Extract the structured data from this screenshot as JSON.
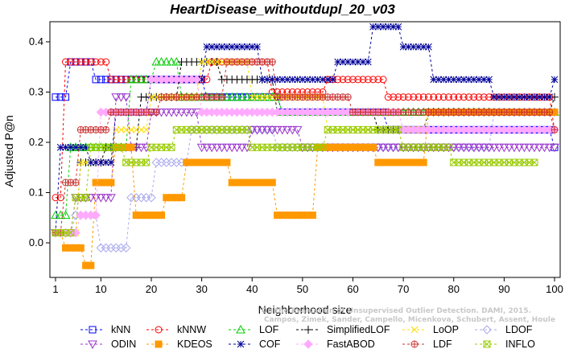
{
  "chart_data": {
    "type": "line",
    "title": "HeartDisease_withoutdupl_20_v03",
    "xlabel": "Neighborhood size",
    "ylabel": "Adjusted P@n",
    "xlim": [
      1,
      100
    ],
    "ylim": [
      -0.05,
      0.45
    ],
    "xticks": [
      1,
      10,
      20,
      30,
      40,
      50,
      60,
      70,
      80,
      90,
      100
    ],
    "yticks": [
      0.0,
      0.1,
      0.2,
      0.3,
      0.4
    ],
    "ytick_labels": [
      "0.0",
      "0.1",
      "0.2",
      "0.3",
      "0.4"
    ],
    "grid": false,
    "legend_position": "bottom",
    "watermark": [
      "Campos, Zimek, Sander, Campello, Micenkova, Schubert, Assent, Houle",
      "On the Evaluation of Unsupervised Outlier Detection. DAMI, 2015."
    ],
    "series": [
      {
        "name": "kNN",
        "color": "#0000ff",
        "marker": "square",
        "segments": [
          [
            1,
            0.29
          ],
          [
            4,
            0.36
          ],
          [
            9,
            0.325
          ],
          [
            22,
            0.325
          ],
          [
            31,
            0.29
          ],
          [
            46,
            0.26
          ],
          [
            67,
            0.225
          ],
          [
            100,
            0.19
          ]
        ]
      },
      {
        "name": "kNNW",
        "color": "#ff0000",
        "marker": "circle",
        "segments": [
          [
            1,
            0.09
          ],
          [
            3,
            0.36
          ],
          [
            12,
            0.325
          ],
          [
            32,
            0.36
          ],
          [
            44,
            0.3
          ],
          [
            55,
            0.325
          ],
          [
            67,
            0.29
          ],
          [
            100,
            0.225
          ]
        ]
      },
      {
        "name": "LOF",
        "color": "#00cc00",
        "marker": "triangle-up",
        "segments": [
          [
            1,
            0.055
          ],
          [
            4,
            0.19
          ],
          [
            16,
            0.325
          ],
          [
            21,
            0.36
          ],
          [
            26,
            0.29
          ],
          [
            46,
            0.26
          ],
          [
            100,
            0.26
          ]
        ]
      },
      {
        "name": "SimplifiedLOF",
        "color": "#000000",
        "marker": "plus",
        "segments": [
          [
            1,
            0.02
          ],
          [
            6,
            0.16
          ],
          [
            11,
            0.19
          ],
          [
            18,
            0.29
          ],
          [
            26,
            0.36
          ],
          [
            34,
            0.325
          ],
          [
            45,
            0.26
          ],
          [
            65,
            0.225
          ],
          [
            75,
            0.26
          ],
          [
            100,
            0.29
          ]
        ]
      },
      {
        "name": "LoOP",
        "color": "#ffdd00",
        "marker": "x",
        "segments": [
          [
            1,
            0.02
          ],
          [
            6,
            0.16
          ],
          [
            13,
            0.225
          ],
          [
            20,
            0.29
          ],
          [
            30,
            0.36
          ],
          [
            40,
            0.29
          ],
          [
            55,
            0.225
          ],
          [
            75,
            0.26
          ],
          [
            100,
            0.26
          ]
        ]
      },
      {
        "name": "LDOF",
        "color": "#aaaaee",
        "marker": "diamond",
        "segments": [
          [
            1,
            0.02
          ],
          [
            5,
            0.055
          ],
          [
            10,
            -0.01
          ],
          [
            16,
            0.09
          ],
          [
            21,
            0.16
          ],
          [
            28,
            0.225
          ],
          [
            45,
            0.19
          ],
          [
            62,
            0.19
          ],
          [
            88,
            0.26
          ],
          [
            100,
            0.26
          ]
        ]
      },
      {
        "name": "ODIN",
        "color": "#9933cc",
        "marker": "triangle-down",
        "segments": [
          [
            1,
            0.02
          ],
          [
            5,
            0.09
          ],
          [
            13,
            0.29
          ],
          [
            16,
            0.19
          ],
          [
            20,
            0.26
          ],
          [
            30,
            0.19
          ],
          [
            40,
            0.225
          ],
          [
            50,
            0.19
          ],
          [
            70,
            0.19
          ],
          [
            90,
            0.19
          ],
          [
            100,
            0.19
          ]
        ]
      },
      {
        "name": "KDEOS",
        "color": "#ff9900",
        "marker": "square-filled",
        "segments": [
          [
            1,
            0.02
          ],
          [
            3,
            -0.01
          ],
          [
            7,
            -0.045
          ],
          [
            9,
            0.12
          ],
          [
            13,
            0.19
          ],
          [
            17,
            0.055
          ],
          [
            23,
            0.09
          ],
          [
            27,
            0.16
          ],
          [
            36,
            0.12
          ],
          [
            45,
            0.055
          ],
          [
            53,
            0.19
          ],
          [
            65,
            0.16
          ],
          [
            75,
            0.26
          ],
          [
            100,
            0.26
          ]
        ]
      },
      {
        "name": "COF",
        "color": "#000099",
        "marker": "star",
        "segments": [
          [
            1,
            0.02
          ],
          [
            2,
            0.19
          ],
          [
            8,
            0.16
          ],
          [
            13,
            0.26
          ],
          [
            20,
            0.325
          ],
          [
            31,
            0.39
          ],
          [
            42,
            0.325
          ],
          [
            57,
            0.36
          ],
          [
            64,
            0.43
          ],
          [
            70,
            0.39
          ],
          [
            76,
            0.325
          ],
          [
            88,
            0.29
          ],
          [
            100,
            0.325
          ]
        ]
      },
      {
        "name": "FastABOD",
        "color": "#ffaaff",
        "marker": "diamond-filled",
        "segments": [
          [
            1,
            0.02
          ],
          [
            6,
            0.055
          ],
          [
            10,
            0.26
          ],
          [
            20,
            0.325
          ],
          [
            30,
            0.26
          ],
          [
            45,
            0.26
          ],
          [
            70,
            0.225
          ],
          [
            100,
            0.225
          ]
        ]
      },
      {
        "name": "LDF",
        "color": "#cc3333",
        "marker": "circle-plus",
        "segments": [
          [
            1,
            0.02
          ],
          [
            3,
            0.12
          ],
          [
            6,
            0.225
          ],
          [
            12,
            0.26
          ],
          [
            22,
            0.29
          ],
          [
            35,
            0.36
          ],
          [
            45,
            0.29
          ],
          [
            60,
            0.26
          ],
          [
            75,
            0.26
          ],
          [
            100,
            0.225
          ]
        ]
      },
      {
        "name": "INFLO",
        "color": "#99cc00",
        "marker": "star-box",
        "segments": [
          [
            1,
            0.02
          ],
          [
            5,
            0.09
          ],
          [
            8,
            0.19
          ],
          [
            15,
            0.16
          ],
          [
            20,
            0.19
          ],
          [
            25,
            0.225
          ],
          [
            40,
            0.19
          ],
          [
            55,
            0.225
          ],
          [
            70,
            0.19
          ],
          [
            80,
            0.16
          ],
          [
            96,
            0.16
          ]
        ]
      }
    ]
  }
}
